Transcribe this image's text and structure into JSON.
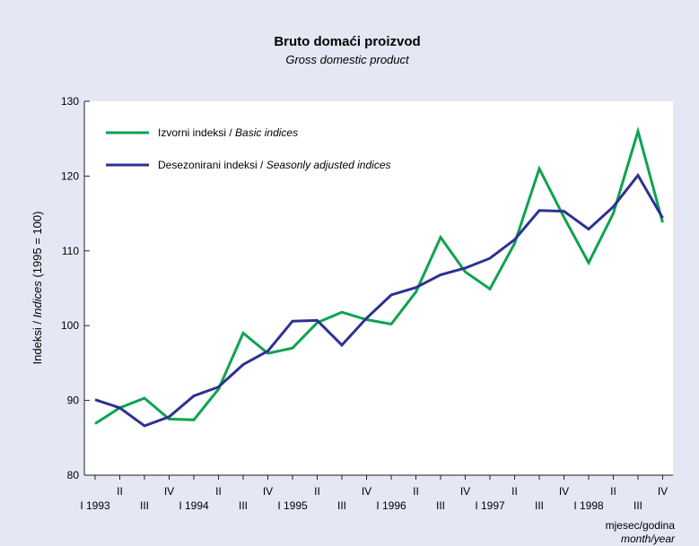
{
  "chart_data": {
    "type": "line",
    "title": "Bruto domaći proizvod",
    "subtitle": "Gross domestic product",
    "ylabel": {
      "main": "Indeksi / ",
      "italic": "Indices",
      "rest": " (1995 = 100)"
    },
    "xlabel": {
      "main": "mjesec/godina",
      "italic": "month/year"
    },
    "ylim": [
      80,
      130
    ],
    "yticks": [
      "80",
      "90",
      "100",
      "110",
      "120",
      "130"
    ],
    "x_tick_rows": {
      "row1": [
        {
          "i": 1,
          "label": "II"
        },
        {
          "i": 3,
          "label": "IV"
        },
        {
          "i": 5,
          "label": "II"
        },
        {
          "i": 7,
          "label": "IV"
        },
        {
          "i": 9,
          "label": "II"
        },
        {
          "i": 11,
          "label": "IV"
        },
        {
          "i": 13,
          "label": "II"
        },
        {
          "i": 15,
          "label": "IV"
        },
        {
          "i": 17,
          "label": "II"
        },
        {
          "i": 19,
          "label": "IV"
        },
        {
          "i": 21,
          "label": "II"
        },
        {
          "i": 23,
          "label": "IV"
        }
      ],
      "row2": [
        {
          "i": 0,
          "label": "I 1993"
        },
        {
          "i": 2,
          "label": "III"
        },
        {
          "i": 4,
          "label": "I 1994"
        },
        {
          "i": 6,
          "label": "III"
        },
        {
          "i": 8,
          "label": "I 1995"
        },
        {
          "i": 10,
          "label": "III"
        },
        {
          "i": 12,
          "label": "I 1996"
        },
        {
          "i": 14,
          "label": "III"
        },
        {
          "i": 16,
          "label": "I 1997"
        },
        {
          "i": 18,
          "label": "III"
        },
        {
          "i": 20,
          "label": "I 1998"
        },
        {
          "i": 22,
          "label": "III"
        }
      ]
    },
    "series": [
      {
        "name": "Izvorni indeksi / ",
        "name_italic": "Basic indices",
        "color": "#0ea34f",
        "values": [
          86.9,
          89.0,
          90.3,
          87.5,
          87.4,
          91.5,
          99.0,
          96.3,
          97.0,
          100.4,
          101.8,
          100.8,
          100.2,
          104.5,
          111.8,
          107.2,
          104.9,
          111.0,
          121.0,
          114.5,
          108.4,
          115.0,
          126.0,
          113.8
        ]
      },
      {
        "name": "Desezonirani indeksi / ",
        "name_italic": "Seasonly adjusted indices",
        "color": "#2e3191",
        "values": [
          90.1,
          89.0,
          86.6,
          87.8,
          90.6,
          91.8,
          94.8,
          96.6,
          100.6,
          100.7,
          97.4,
          101.0,
          104.1,
          105.1,
          106.8,
          107.7,
          109.0,
          111.5,
          115.4,
          115.3,
          112.9,
          115.9,
          120.1,
          114.4
        ]
      }
    ]
  }
}
